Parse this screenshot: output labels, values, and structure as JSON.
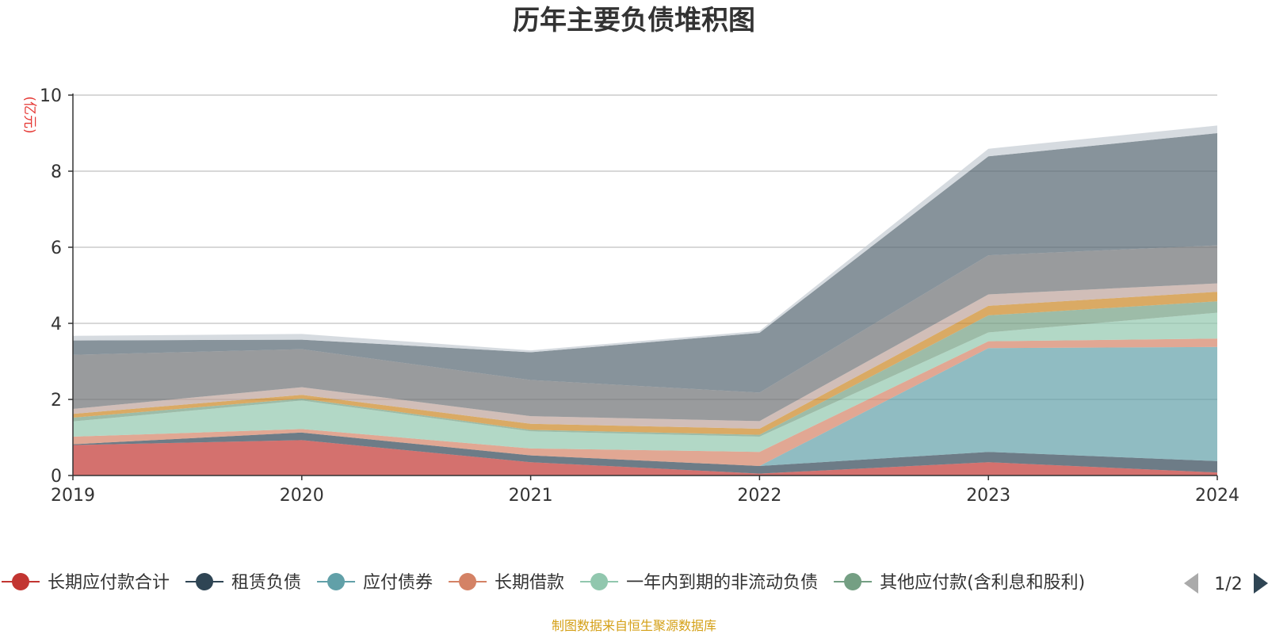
{
  "chart_data": {
    "type": "area",
    "stacked": true,
    "title": "历年主要负债堆积图",
    "unit": "(亿元)",
    "x": [
      "2019",
      "2020",
      "2021",
      "2022",
      "2023",
      "2024"
    ],
    "ylim": [
      0,
      10
    ],
    "yticks": [
      "0",
      "2",
      "4",
      "6",
      "8",
      "10"
    ],
    "grid": true,
    "legend_position": "bottom",
    "series": [
      {
        "name": "长期应付款合计",
        "color": "#c23531",
        "values": [
          0.8,
          0.93,
          0.35,
          0.05,
          0.35,
          0.08
        ]
      },
      {
        "name": "租赁负债",
        "color": "#2f4554",
        "values": [
          0.02,
          0.2,
          0.18,
          0.2,
          0.27,
          0.3
        ]
      },
      {
        "name": "应付债券",
        "color": "#61a0a8",
        "values": [
          0.0,
          0.0,
          0.0,
          0.0,
          2.73,
          3.0
        ]
      },
      {
        "name": "长期借款",
        "color": "#d48265",
        "values": [
          0.2,
          0.09,
          0.18,
          0.37,
          0.18,
          0.22
        ]
      },
      {
        "name": "一年内到期的非流动负债",
        "color": "#91c7ae",
        "values": [
          0.4,
          0.75,
          0.45,
          0.4,
          0.23,
          0.68
        ]
      },
      {
        "name": "其他应付款(含利息和股利)",
        "color": "#749f83",
        "values": [
          0.1,
          0.05,
          0.04,
          0.05,
          0.45,
          0.3
        ]
      },
      {
        "name": "",
        "color": "#ca8622",
        "values": [
          0.1,
          0.1,
          0.16,
          0.16,
          0.25,
          0.25
        ]
      },
      {
        "name": "",
        "color": "#bda29a",
        "values": [
          0.13,
          0.2,
          0.2,
          0.2,
          0.3,
          0.22
        ]
      },
      {
        "name": "",
        "color": "#6e7074",
        "values": [
          1.42,
          1.0,
          0.95,
          0.75,
          1.03,
          1.0
        ]
      },
      {
        "name": "",
        "color": "#546570",
        "values": [
          0.38,
          0.25,
          0.73,
          1.57,
          2.6,
          2.95
        ]
      },
      {
        "name": "",
        "color": "#c4ccd3",
        "values": [
          0.12,
          0.15,
          0.05,
          0.05,
          0.2,
          0.2
        ]
      }
    ]
  },
  "legend": {
    "page_text": "1/2"
  },
  "source_text": "制图数据来自恒生聚源数据库"
}
